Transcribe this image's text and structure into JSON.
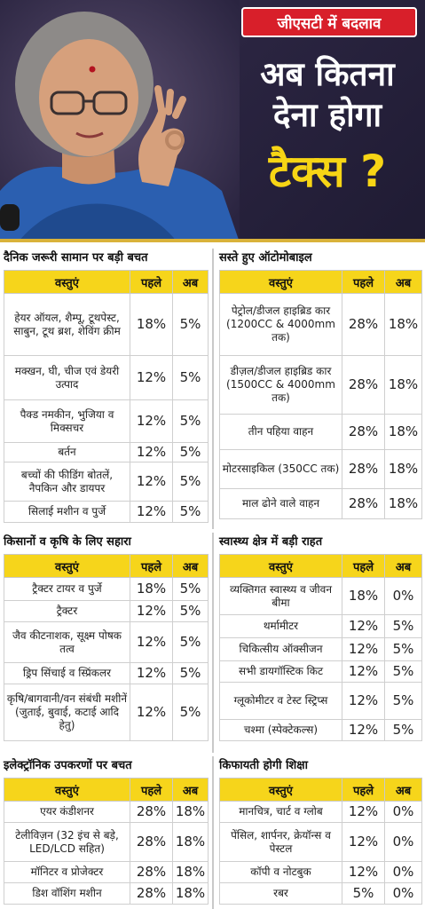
{
  "header": {
    "badge": "जीएसटी में बदलाव",
    "headline_line1": "अब कितना",
    "headline_line2": "देना होगा",
    "headline_line3": "टैक्स ?"
  },
  "columns": {
    "item": "वस्तुएं",
    "before": "पहले",
    "now": "अब"
  },
  "sections": {
    "daily": {
      "title": "दैनिक जरूरी सामान पर बड़ी बचत",
      "rows": [
        {
          "item": "हेयर ऑयल, शैम्पू, टूथपेस्ट, साबुन, टूथ ब्रश, शेविंग क्रीम",
          "before": "18%",
          "now": "5%"
        },
        {
          "item": "मक्खन, घी, चीज एवं डेयरी उत्पाद",
          "before": "12%",
          "now": "5%"
        },
        {
          "item": "पैक्ड नमकीन, भुजिया व मिक्सचर",
          "before": "12%",
          "now": "5%"
        },
        {
          "item": "बर्तन",
          "before": "12%",
          "now": "5%"
        },
        {
          "item": "बच्चों की फीडिंग बोतलें, नैपकिन और डायपर",
          "before": "12%",
          "now": "5%"
        },
        {
          "item": "सिलाई मशीन व पुर्जे",
          "before": "12%",
          "now": "5%"
        }
      ]
    },
    "auto": {
      "title": "सस्ते हुए ऑटोमोबाइल",
      "rows": [
        {
          "item": "पेट्रोल/डीजल हाइब्रिड कार (1200CC & 4000mm तक)",
          "before": "28%",
          "now": "18%"
        },
        {
          "item": "डीज़ल/डीजल हाइब्रिड कार (1500CC & 4000mm तक)",
          "before": "28%",
          "now": "18%"
        },
        {
          "item": "तीन पहिया वाहन",
          "before": "28%",
          "now": "18%"
        },
        {
          "item": "मोटरसाइकिल (350CC तक)",
          "before": "28%",
          "now": "18%"
        },
        {
          "item": "माल ढोने वाले वाहन",
          "before": "28%",
          "now": "18%"
        }
      ]
    },
    "farm": {
      "title": "किसानों व कृषि के लिए सहारा",
      "rows": [
        {
          "item": "ट्रैक्टर टायर व पुर्जे",
          "before": "18%",
          "now": "5%"
        },
        {
          "item": "ट्रैक्टर",
          "before": "12%",
          "now": "5%"
        },
        {
          "item": "जैव कीटनाशक, सूक्ष्म पोषक तत्व",
          "before": "12%",
          "now": "5%"
        },
        {
          "item": "ड्रिप सिंचाई व स्प्रिंकलर",
          "before": "12%",
          "now": "5%"
        },
        {
          "item": "कृषि/बागवानी/वन संबंधी मशीनें (जुताई, बुवाई, कटाई आदि हेतु)",
          "before": "12%",
          "now": "5%"
        }
      ]
    },
    "health": {
      "title": "स्वास्थ्य क्षेत्र में बड़ी राहत",
      "rows": [
        {
          "item": "व्यक्तिगत स्वास्थ्य व जीवन बीमा",
          "before": "18%",
          "now": "0%"
        },
        {
          "item": "थर्मामीटर",
          "before": "12%",
          "now": "5%"
        },
        {
          "item": "चिकित्सीय ऑक्सीजन",
          "before": "12%",
          "now": "5%"
        },
        {
          "item": "सभी डायगॉस्टिक किट",
          "before": "12%",
          "now": "5%"
        },
        {
          "item": "ग्लूकोमीटर व टेस्ट स्ट्रिप्स",
          "before": "12%",
          "now": "5%"
        },
        {
          "item": "चश्मा (स्पेक्टेकल्स)",
          "before": "12%",
          "now": "5%"
        }
      ]
    },
    "electronics": {
      "title": "इलेक्ट्रॉनिक उपकरणों पर बचत",
      "rows": [
        {
          "item": "एयर कंडीशनर",
          "before": "28%",
          "now": "18%"
        },
        {
          "item": "टेलीविज़न (32 इंच से बड़े, LED/LCD सहित)",
          "before": "28%",
          "now": "18%"
        },
        {
          "item": "मॉनिटर व प्रोजेक्टर",
          "before": "28%",
          "now": "18%"
        },
        {
          "item": "डिश वॉशिंग मशीन",
          "before": "28%",
          "now": "18%"
        }
      ]
    },
    "education": {
      "title": "किफायती होगी शिक्षा",
      "rows": [
        {
          "item": "मानचित्र, चार्ट व ग्लोब",
          "before": "12%",
          "now": "0%"
        },
        {
          "item": "पेंसिल, शार्पनर, क्रेयॉन्स व पेस्टल",
          "before": "12%",
          "now": "0%"
        },
        {
          "item": "कॉपी व नोटबुक",
          "before": "12%",
          "now": "0%"
        },
        {
          "item": "रबर",
          "before": "5%",
          "now": "0%"
        }
      ]
    }
  }
}
